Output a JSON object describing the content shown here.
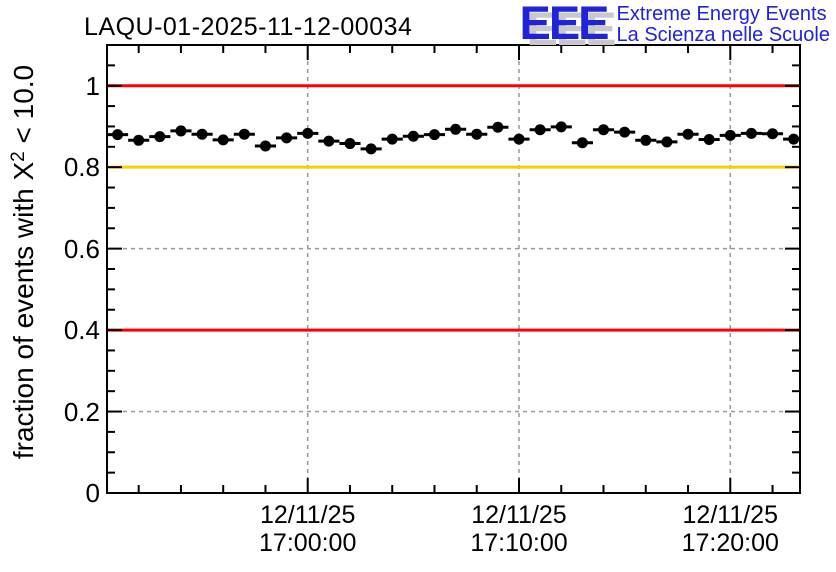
{
  "page": {
    "background": "#ffffff"
  },
  "header": {
    "title": "LAQU-01-2025-11-12-00034",
    "logo": {
      "acronym": "EEE",
      "line1": "Extreme Energy Events",
      "line2": "La Scienza nelle Scuole",
      "color": "#2222d8",
      "shadow_color": "#c9c9c9"
    }
  },
  "axis_label": {
    "prefix": "fraction of events with X",
    "sup": "2",
    "suffix": " < 10.0"
  },
  "chart_data": {
    "type": "scatter",
    "title": "LAQU-01-2025-11-12-00034",
    "xlabel": "",
    "ylabel": "fraction of events with X^2 < 10.0",
    "ylim": [
      0,
      1.1
    ],
    "y_major_step": 0.2,
    "y_minor_step": 0.05,
    "y_tick_labels": [
      {
        "value": 0,
        "label": "0"
      },
      {
        "value": 0.2,
        "label": "0.2"
      },
      {
        "value": 0.4,
        "label": "0.4"
      },
      {
        "value": 0.6,
        "label": "0.6"
      },
      {
        "value": 0.8,
        "label": "0.8"
      },
      {
        "value": 1,
        "label": "1"
      }
    ],
    "x_axis": {
      "unit": "minutes relative to 12/11/25 17:00:00",
      "range_minutes": [
        -9.5,
        23.3
      ],
      "minor_step_minutes": 2,
      "major_ticks": [
        {
          "minute": 0,
          "date": "12/11/25",
          "time": "17:00:00"
        },
        {
          "minute": 10,
          "date": "12/11/25",
          "time": "17:10:00"
        },
        {
          "minute": 20,
          "date": "12/11/25",
          "time": "17:20:00"
        }
      ]
    },
    "grid": {
      "show": true,
      "color": "#999999",
      "style": "dashed"
    },
    "reference_lines": [
      {
        "y": 1.0,
        "color": "#ff0000"
      },
      {
        "y": 0.8,
        "color": "#ffcc00"
      },
      {
        "y": 0.4,
        "color": "#ff0000"
      }
    ],
    "series": [
      {
        "name": "fraction of events with chi2 < 10 per 1-minute bin",
        "marker": "filled-circle",
        "color": "#000000",
        "x_error_minutes": 0.5,
        "minutes": [
          -9,
          -8,
          -7,
          -6,
          -5,
          -4,
          -3,
          -2,
          -1,
          0,
          1,
          2,
          3,
          4,
          5,
          6,
          7,
          8,
          9,
          10,
          11,
          12,
          13,
          14,
          15,
          16,
          17,
          18,
          19,
          20,
          21,
          22,
          23
        ],
        "values": [
          0.88,
          0.866,
          0.875,
          0.889,
          0.881,
          0.867,
          0.881,
          0.852,
          0.872,
          0.883,
          0.864,
          0.858,
          0.845,
          0.869,
          0.876,
          0.88,
          0.893,
          0.881,
          0.898,
          0.869,
          0.892,
          0.899,
          0.86,
          0.892,
          0.886,
          0.866,
          0.862,
          0.881,
          0.868,
          0.878,
          0.883,
          0.882,
          0.869
        ]
      }
    ]
  }
}
